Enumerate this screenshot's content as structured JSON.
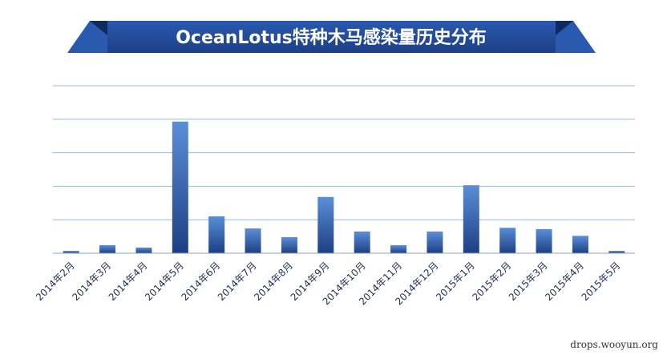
{
  "chart_data": {
    "type": "bar",
    "title": "OceanLotus特种木马感染量历史分布",
    "xlabel": "",
    "ylabel": "",
    "categories": [
      "2014年2月",
      "2014年3月",
      "2014年4月",
      "2014年5月",
      "2014年6月",
      "2014年7月",
      "2014年8月",
      "2014年9月",
      "2014年10月",
      "2014年11月",
      "2014年12月",
      "2015年1月",
      "2015年2月",
      "2015年3月",
      "2015年4月",
      "2015年5月"
    ],
    "values": [
      0.07,
      0.24,
      0.17,
      3.93,
      1.1,
      0.74,
      0.48,
      1.68,
      0.65,
      0.24,
      0.65,
      2.03,
      0.76,
      0.72,
      0.52,
      0.07
    ],
    "ylim": [
      0,
      5
    ],
    "grid": true,
    "legend": "none",
    "colors": {
      "banner": "#1d3f86",
      "banner_shade": "#2a59b0",
      "banner_fold": "#12295e",
      "bar_top": "#5b8ed9",
      "bar_bottom": "#1c3f82",
      "grid": "#9fb6d4",
      "axis": "#8aa3c2",
      "tick_text": "#1f2f55"
    }
  },
  "watermark": "drops.wooyun.org"
}
